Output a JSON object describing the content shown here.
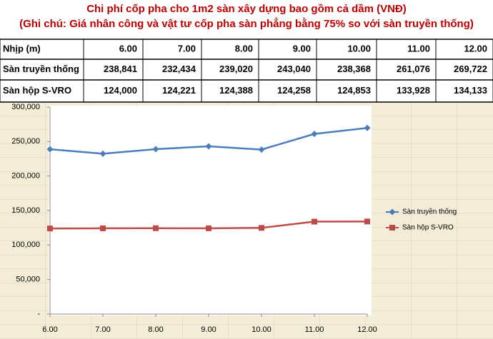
{
  "title": "Chi phí cốp pha cho 1m2 sàn xây dựng bao gồm cả dầm (VNĐ)",
  "subtitle": "(Ghi chú: Giá nhân công và vật tư cốp pha sàn phẳng bằng 75% so với sàn truyền thống)",
  "table": {
    "header": [
      "Nhịp (m)",
      "6.00",
      "7.00",
      "8.00",
      "9.00",
      "10.00",
      "11.00",
      "12.00"
    ],
    "rows": [
      [
        "Sàn truyền thống",
        "238,841",
        "232,434",
        "239,020",
        "243,040",
        "238,368",
        "261,076",
        "269,722"
      ],
      [
        "Sàn hộp S-VRO",
        "124,000",
        "124,221",
        "124,388",
        "124,258",
        "124,853",
        "133,928",
        "134,133"
      ]
    ]
  },
  "chart_data": {
    "type": "line",
    "categories": [
      "6.00",
      "7.00",
      "8.00",
      "9.00",
      "10.00",
      "11.00",
      "12.00"
    ],
    "series": [
      {
        "name": "Sàn truyền thống",
        "color": "#4a7ebb",
        "marker": "diamond",
        "values": [
          238841,
          232434,
          239020,
          243040,
          238368,
          261076,
          269722
        ]
      },
      {
        "name": "Sàn hộp S-VRO",
        "color": "#be4b48",
        "marker": "square",
        "values": [
          124000,
          124221,
          124388,
          124258,
          124853,
          133928,
          134133
        ]
      }
    ],
    "ylim": [
      0,
      300000
    ],
    "yticks": [
      {
        "value": 0,
        "label": "-"
      },
      {
        "value": 50000,
        "label": "50,000"
      },
      {
        "value": 100000,
        "label": "100,000"
      },
      {
        "value": 150000,
        "label": "150,000"
      },
      {
        "value": 200000,
        "label": "200,000"
      },
      {
        "value": 250000,
        "label": "250,000"
      },
      {
        "value": 300000,
        "label": "300,000"
      }
    ],
    "legend": "right",
    "grid": false
  }
}
